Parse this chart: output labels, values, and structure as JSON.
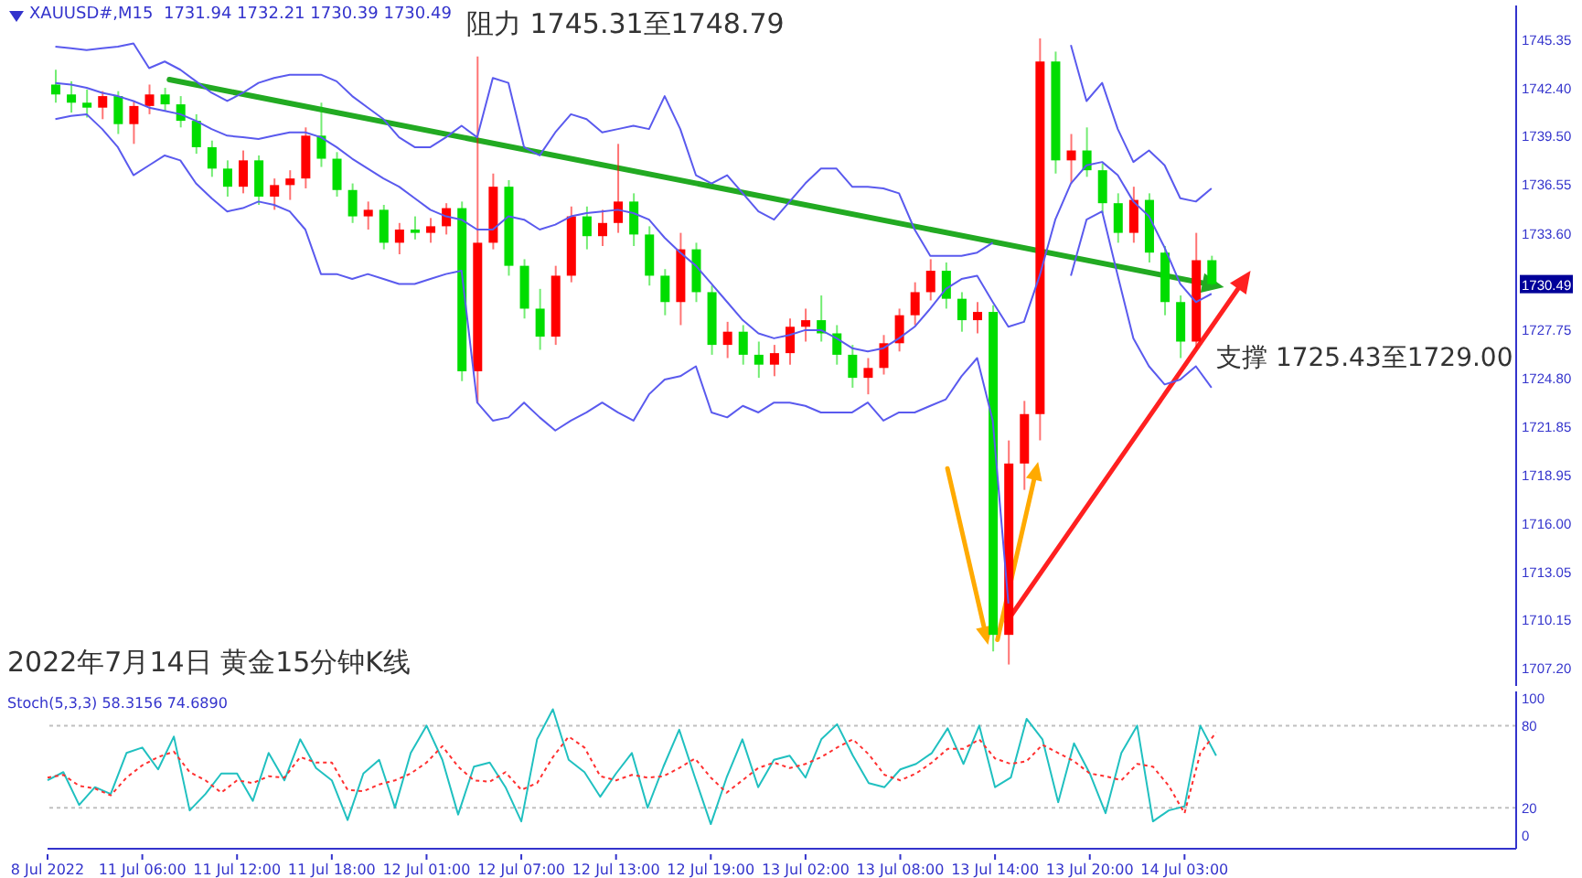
{
  "chart_data": [
    {
      "type": "candlestick",
      "title": "XAUUSD#,M15  1731.94 1732.21 1730.39 1730.49",
      "annotations": [
        "阻力 1745.31至1748.79",
        "支撑 1725.43至1729.00",
        "2022年7月14日 黄金15分钟K线"
      ],
      "categories": [
        null,
        null,
        null,
        null,
        null,
        null,
        null,
        null,
        null,
        null,
        null,
        null,
        null,
        null,
        null,
        null,
        null,
        null,
        null,
        null,
        null,
        null,
        null,
        null,
        null,
        null,
        null,
        null,
        null,
        null,
        null,
        null,
        null,
        null,
        null,
        null,
        null,
        null,
        null,
        null,
        null,
        null,
        null,
        null,
        null,
        null,
        null,
        null,
        null,
        null,
        null,
        null,
        null,
        null,
        null,
        null,
        null,
        null,
        null,
        null,
        null,
        null,
        null,
        null,
        null,
        null,
        null,
        null,
        null,
        null,
        null,
        null,
        null,
        null,
        null,
        null,
        null,
        null,
        null,
        null,
        null,
        null,
        null,
        null,
        null,
        null,
        null,
        null,
        null,
        null,
        null,
        null,
        null,
        null
      ],
      "ohlc": [
        [
          1742.6,
          1743.5,
          1741.5,
          1742.0
        ],
        [
          1742.0,
          1742.8,
          1740.9,
          1741.5
        ],
        [
          1741.5,
          1742.3,
          1740.6,
          1741.2
        ],
        [
          1741.2,
          1742.2,
          1740.5,
          1741.9
        ],
        [
          1741.9,
          1742.2,
          1739.6,
          1740.2
        ],
        [
          1740.2,
          1741.6,
          1739.0,
          1741.3
        ],
        [
          1741.3,
          1742.6,
          1740.8,
          1742.0
        ],
        [
          1742.0,
          1742.4,
          1741.0,
          1741.4
        ],
        [
          1741.4,
          1741.9,
          1740.0,
          1740.4
        ],
        [
          1740.4,
          1740.8,
          1738.4,
          1738.8
        ],
        [
          1738.8,
          1739.2,
          1737.0,
          1737.5
        ],
        [
          1737.5,
          1738.0,
          1735.8,
          1736.4
        ],
        [
          1736.4,
          1738.6,
          1736.0,
          1738.0
        ],
        [
          1738.0,
          1738.3,
          1735.3,
          1735.8
        ],
        [
          1735.8,
          1736.9,
          1735.0,
          1736.5
        ],
        [
          1736.5,
          1737.4,
          1735.6,
          1736.9
        ],
        [
          1736.9,
          1740.0,
          1736.3,
          1739.5
        ],
        [
          1739.5,
          1741.5,
          1737.6,
          1738.1
        ],
        [
          1738.1,
          1738.5,
          1735.8,
          1736.2
        ],
        [
          1736.2,
          1736.6,
          1734.2,
          1734.6
        ],
        [
          1734.6,
          1735.5,
          1733.8,
          1735.0
        ],
        [
          1735.0,
          1735.3,
          1732.6,
          1733.0
        ],
        [
          1733.0,
          1734.2,
          1732.3,
          1733.8
        ],
        [
          1733.8,
          1734.6,
          1733.2,
          1733.6
        ],
        [
          1733.6,
          1734.5,
          1733.0,
          1734.0
        ],
        [
          1734.0,
          1735.4,
          1733.5,
          1735.1
        ],
        [
          1735.1,
          1735.5,
          1724.6,
          1725.2
        ],
        [
          1725.2,
          1744.3,
          1723.3,
          1733.0
        ],
        [
          1733.0,
          1737.2,
          1732.6,
          1736.4
        ],
        [
          1736.4,
          1736.8,
          1731.0,
          1731.6
        ],
        [
          1731.6,
          1732.0,
          1728.4,
          1729.0
        ],
        [
          1729.0,
          1730.2,
          1726.5,
          1727.3
        ],
        [
          1727.3,
          1731.6,
          1726.8,
          1731.0
        ],
        [
          1731.0,
          1735.2,
          1730.6,
          1734.6
        ],
        [
          1734.6,
          1735.2,
          1732.6,
          1733.4
        ],
        [
          1733.4,
          1735.0,
          1732.8,
          1734.2
        ],
        [
          1734.2,
          1739.0,
          1733.6,
          1735.5
        ],
        [
          1735.5,
          1736.0,
          1732.8,
          1733.5
        ],
        [
          1733.5,
          1734.0,
          1730.4,
          1731.0
        ],
        [
          1731.0,
          1731.4,
          1728.6,
          1729.4
        ],
        [
          1729.4,
          1733.6,
          1728.0,
          1732.6
        ],
        [
          1732.6,
          1733.0,
          1729.4,
          1730.0
        ],
        [
          1730.0,
          1730.4,
          1726.2,
          1726.8
        ],
        [
          1726.8,
          1728.2,
          1726.0,
          1727.6
        ],
        [
          1727.6,
          1728.0,
          1725.6,
          1726.2
        ],
        [
          1726.2,
          1727.0,
          1724.8,
          1725.6
        ],
        [
          1725.6,
          1726.8,
          1724.9,
          1726.3
        ],
        [
          1726.3,
          1728.4,
          1725.6,
          1727.9
        ],
        [
          1727.9,
          1729.0,
          1727.0,
          1728.3
        ],
        [
          1728.3,
          1729.8,
          1727.0,
          1727.5
        ],
        [
          1727.5,
          1728.0,
          1725.6,
          1726.2
        ],
        [
          1726.2,
          1726.8,
          1724.2,
          1724.8
        ],
        [
          1724.8,
          1726.0,
          1723.8,
          1725.4
        ],
        [
          1725.4,
          1727.4,
          1725.0,
          1726.9
        ],
        [
          1726.9,
          1729.0,
          1726.4,
          1728.6
        ],
        [
          1728.6,
          1730.6,
          1728.0,
          1730.0
        ],
        [
          1730.0,
          1732.0,
          1729.5,
          1731.3
        ],
        [
          1731.3,
          1731.8,
          1729.0,
          1729.6
        ],
        [
          1729.6,
          1730.0,
          1727.6,
          1728.3
        ],
        [
          1728.3,
          1729.4,
          1727.5,
          1728.8
        ],
        [
          1728.8,
          1729.2,
          1708.2,
          1709.2
        ],
        [
          1709.2,
          1721.0,
          1707.4,
          1719.6
        ],
        [
          1719.6,
          1723.4,
          1718.0,
          1722.6
        ],
        [
          1722.6,
          1745.4,
          1721.0,
          1744.0
        ],
        [
          1744.0,
          1744.6,
          1737.2,
          1738.0
        ],
        [
          1738.0,
          1739.6,
          1736.6,
          1738.6
        ],
        [
          1738.6,
          1740.0,
          1737.0,
          1737.4
        ],
        [
          1737.4,
          1737.8,
          1734.8,
          1735.4
        ],
        [
          1735.4,
          1736.0,
          1733.0,
          1733.6
        ],
        [
          1733.6,
          1736.4,
          1733.0,
          1735.6
        ],
        [
          1735.6,
          1736.0,
          1731.8,
          1732.4
        ],
        [
          1732.4,
          1732.8,
          1728.6,
          1729.4
        ],
        [
          1729.4,
          1729.8,
          1726.0,
          1727.0
        ],
        [
          1727.0,
          1733.6,
          1726.6,
          1731.94
        ],
        [
          1731.94,
          1732.21,
          1730.39,
          1730.49
        ],
        null,
        null,
        null,
        null,
        null,
        null,
        null,
        null,
        null,
        null,
        null,
        null,
        null,
        null,
        null,
        null,
        null,
        null,
        null
      ],
      "colors": [
        "#00dd00",
        "#00dd00",
        "#00dd00",
        "#ff0000",
        "#00dd00",
        "#ff0000",
        "#ff0000",
        "#00dd00",
        "#00dd00",
        "#00dd00",
        "#00dd00",
        "#00dd00",
        "#ff0000",
        "#00dd00",
        "#ff0000",
        "#ff0000",
        "#ff0000",
        "#00dd00",
        "#00dd00",
        "#00dd00",
        "#ff0000",
        "#00dd00",
        "#ff0000",
        "#00dd00",
        "#ff0000",
        "#ff0000",
        "#00dd00",
        "#ff0000",
        "#ff0000",
        "#00dd00",
        "#00dd00",
        "#00dd00",
        "#ff0000",
        "#ff0000",
        "#00dd00",
        "#ff0000",
        "#ff0000",
        "#00dd00",
        "#00dd00",
        "#00dd00",
        "#ff0000",
        "#00dd00",
        "#00dd00",
        "#ff0000",
        "#00dd00",
        "#00dd00",
        "#ff0000",
        "#ff0000",
        "#ff0000",
        "#00dd00",
        "#00dd00",
        "#00dd00",
        "#ff0000",
        "#ff0000",
        "#ff0000",
        "#ff0000",
        "#ff0000",
        "#00dd00",
        "#00dd00",
        "#ff0000",
        "#00dd00",
        "#ff0000",
        "#ff0000",
        "#ff0000",
        "#00dd00",
        "#ff0000",
        "#00dd00",
        "#00dd00",
        "#00dd00",
        "#ff0000",
        "#00dd00",
        "#00dd00",
        "#00dd00",
        "#ff0000",
        "#00dd00",
        null,
        null,
        null,
        null,
        null,
        null,
        null,
        null,
        null,
        null,
        null,
        null,
        null,
        null,
        null,
        null,
        null,
        null,
        null
      ],
      "series": [
        {
          "type": "line",
          "color": "#5a5aee",
          "values": [
            1744.9,
            1744.8,
            1744.7,
            1744.8,
            1744.9,
            1745.1,
            1743.6,
            1744.0,
            1743.5,
            1742.8,
            1742.1,
            1741.6,
            1742.1,
            1742.7,
            1743.0,
            1743.2,
            1743.2,
            1743.2,
            1742.8,
            1741.9,
            1741.2,
            1740.5,
            1739.4,
            1738.8,
            1738.8,
            1739.4,
            1740.1,
            1739.4,
            1743.0,
            1742.7,
            1738.8,
            1738.3,
            1739.7,
            1740.8,
            1740.5,
            1739.7,
            1739.9,
            1740.1,
            1739.9,
            1741.9,
            1739.9,
            1737.1,
            1736.6,
            1737.1,
            1736.0,
            1734.9,
            1734.4,
            1735.5,
            1736.6,
            1737.5,
            1737.5,
            1736.4,
            1736.4,
            1736.3,
            1736.0,
            1733.8,
            1732.2,
            1732.2,
            1732.2,
            1732.4,
            1733.0,
            null,
            null,
            null,
            null,
            1745.0,
            1741.6,
            1742.7,
            1739.9,
            1737.9,
            1738.6,
            1737.7,
            1735.7,
            1735.5,
            1736.3,
            null,
            null,
            null,
            null,
            null,
            null,
            null,
            null,
            null,
            null,
            null,
            null,
            null,
            null,
            null,
            null,
            null,
            null,
            null
          ]
        },
        {
          "type": "line",
          "color": "#5a5aee",
          "values": [
            1742.7,
            1742.6,
            1742.4,
            1742.1,
            1741.9,
            1741.6,
            1741.2,
            1741.0,
            1740.8,
            1740.4,
            1739.9,
            1739.5,
            1739.4,
            1739.3,
            1739.5,
            1739.7,
            1739.7,
            1739.4,
            1738.8,
            1738.1,
            1737.5,
            1736.9,
            1736.4,
            1735.7,
            1735.0,
            1734.6,
            1734.4,
            1733.8,
            1733.8,
            1734.6,
            1734.4,
            1733.8,
            1734.1,
            1734.6,
            1734.8,
            1734.9,
            1735.0,
            1734.8,
            1734.4,
            1733.3,
            1732.4,
            1731.6,
            1730.5,
            1729.4,
            1728.3,
            1727.5,
            1727.2,
            1727.4,
            1727.7,
            1727.7,
            1727.2,
            1726.6,
            1726.4,
            1726.6,
            1727.2,
            1727.9,
            1729.0,
            1730.2,
            1730.8,
            1731.0,
            1729.4,
            1727.9,
            1728.2,
            1731.0,
            1734.4,
            1736.6,
            1737.7,
            1737.9,
            1737.1,
            1735.5,
            1734.6,
            1732.7,
            1730.5,
            1729.4,
            1729.9,
            null,
            null,
            null,
            null,
            null,
            null,
            null,
            null,
            null,
            null,
            null,
            null,
            null,
            null,
            null,
            null,
            null,
            null,
            null
          ]
        },
        {
          "type": "line",
          "color": "#5a5aee",
          "values": [
            1740.5,
            1740.7,
            1740.8,
            1739.9,
            1738.8,
            1737.1,
            1737.7,
            1738.3,
            1738.0,
            1736.6,
            1735.7,
            1734.9,
            1735.1,
            1735.5,
            1735.3,
            1734.9,
            1733.8,
            1731.1,
            1731.1,
            1730.8,
            1731.1,
            1730.8,
            1730.5,
            1730.5,
            1730.8,
            1731.1,
            1731.3,
            1723.3,
            1722.2,
            1722.4,
            1723.3,
            1722.4,
            1721.6,
            1722.2,
            1722.7,
            1723.3,
            1722.7,
            1722.2,
            1723.8,
            1724.7,
            1724.9,
            1725.5,
            1722.7,
            1722.4,
            1723.1,
            1722.7,
            1723.3,
            1723.3,
            1723.1,
            1722.7,
            1722.7,
            1722.7,
            1723.3,
            1722.2,
            1722.7,
            1722.7,
            1723.1,
            1723.5,
            1724.9,
            1726.0,
            1722.2,
            1711.1,
            null,
            null,
            null,
            1731.0,
            1734.4,
            1734.9,
            1731.0,
            1727.2,
            1725.5,
            1724.4,
            1724.7,
            1725.5,
            1724.2,
            null,
            null,
            null,
            null,
            null,
            null,
            null,
            null,
            null,
            null,
            null,
            null,
            null,
            null,
            null,
            null,
            null,
            null,
            null
          ]
        }
      ],
      "ylim": [
        1706.1,
        1747.4
      ],
      "yticks": [
        1745.35,
        {
          "value": 1742.4,
          "label": "1742.40"
        },
        {
          "value": 1739.5,
          "label": "1739.50"
        },
        1736.55,
        {
          "value": 1733.6,
          "label": "1733.60"
        },
        1730.49,
        1727.75,
        {
          "value": 1724.8,
          "label": "1724.80"
        },
        1721.85,
        1718.95,
        {
          "value": 1716,
          "label": "1716.00"
        },
        1713.05,
        1710.15,
        {
          "value": 1707.2,
          "label": "1707.20"
        }
      ],
      "tick_labels": "y"
    },
    {
      "type": "line",
      "title": "Stoch(5,3,3) 58.3156 74.6890",
      "categories": [
        "8 Jul 2022",
        null,
        null,
        null,
        null,
        null,
        "11 Jul 06:00",
        null,
        null,
        null,
        null,
        null,
        "11 Jul 12:00",
        null,
        null,
        null,
        null,
        null,
        "11 Jul 18:00",
        null,
        null,
        null,
        null,
        null,
        "12 Jul 01:00",
        null,
        null,
        null,
        null,
        null,
        "12 Jul 07:00",
        null,
        null,
        null,
        null,
        null,
        "12 Jul 13:00",
        null,
        null,
        null,
        null,
        null,
        "12 Jul 19:00",
        null,
        null,
        null,
        null,
        null,
        "13 Jul 02:00",
        null,
        null,
        null,
        null,
        null,
        "13 Jul 08:00",
        null,
        null,
        null,
        null,
        null,
        "13 Jul 14:00",
        null,
        null,
        null,
        null,
        null,
        "13 Jul 20:00",
        null,
        null,
        null,
        null,
        null,
        "14 Jul 03:00",
        null,
        null,
        null,
        null,
        null,
        null,
        null,
        null,
        null,
        null,
        null,
        null,
        null,
        null,
        null,
        null,
        null,
        null,
        null,
        null,
        null
      ],
      "series": [
        {
          "color": "#20c0c0",
          "line_style": "solid",
          "values": [
            40,
            46,
            22,
            35,
            30,
            60,
            64,
            48,
            72,
            18,
            30,
            45,
            45,
            25,
            60,
            40,
            70,
            49,
            40,
            11,
            45,
            55,
            20,
            60,
            80,
            55,
            15,
            50,
            53,
            35,
            10,
            70,
            92,
            55,
            46,
            28,
            45,
            60,
            20,
            50,
            77,
            42,
            8,
            42,
            70,
            35,
            55,
            58,
            42,
            70,
            81,
            58,
            38,
            35,
            48,
            52,
            60,
            78,
            52,
            80,
            35,
            42,
            85,
            70,
            24,
            67,
            45,
            16,
            60,
            80,
            10,
            18,
            21,
            80,
            58,
            null,
            null,
            null,
            null,
            null,
            null,
            null,
            null,
            null,
            null,
            null,
            null,
            null,
            null,
            null,
            null,
            null,
            null,
            null
          ]
        },
        {
          "color": "#ff3030",
          "line_style": "dotted",
          "values": [
            42,
            44,
            36,
            34,
            29,
            42,
            51,
            57,
            61,
            46,
            40,
            31,
            40,
            38,
            43,
            42,
            57,
            53,
            53,
            33,
            32,
            37,
            40,
            45,
            53,
            65,
            50,
            40,
            39,
            46,
            33,
            38,
            57,
            72,
            64,
            43,
            40,
            44,
            42,
            43,
            49,
            56,
            42,
            31,
            40,
            49,
            53,
            49,
            52,
            57,
            64,
            70,
            59,
            44,
            40,
            45,
            53,
            63,
            63,
            70,
            56,
            52,
            54,
            66,
            60,
            54,
            45,
            43,
            40,
            52,
            50,
            36,
            16,
            60,
            75,
            null,
            null,
            null,
            null,
            null,
            null,
            null,
            null,
            null,
            null,
            null,
            null,
            null,
            null,
            null,
            null,
            null,
            null,
            null
          ]
        }
      ],
      "ylim": [
        -10,
        105
      ],
      "yticks": [
        0,
        20,
        80,
        100
      ],
      "ref_lines": [
        {
          "axis": "y",
          "value": 80,
          "color": "#c0c0c0",
          "line_style": "dotted"
        },
        {
          "axis": "y",
          "value": 20,
          "color": "#c0c0c0",
          "line_style": "dotted"
        }
      ]
    }
  ]
}
